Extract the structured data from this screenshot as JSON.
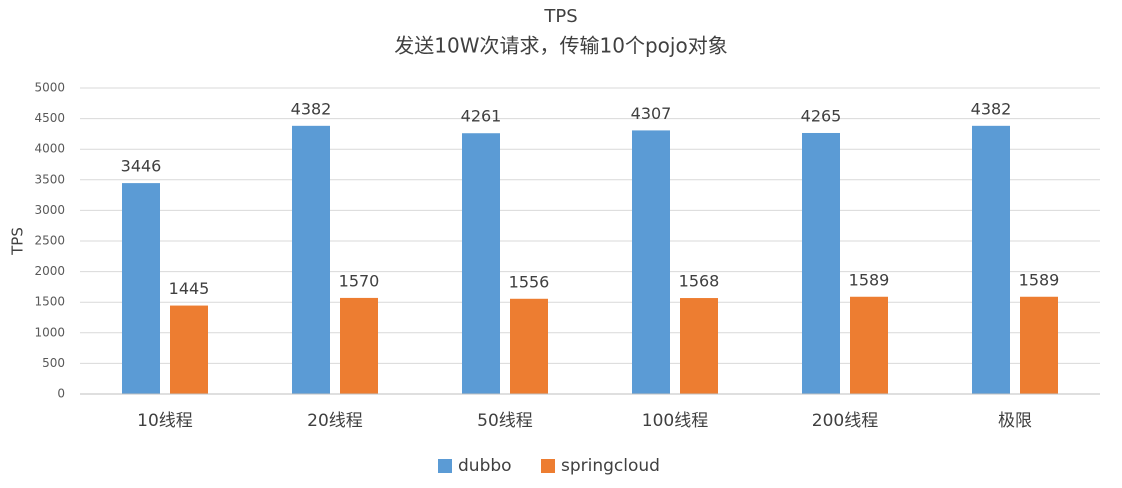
{
  "chart_data": {
    "type": "bar",
    "title": "TPS",
    "subtitle": "发送10W次请求，传输10个pojo对象",
    "y_label": "TPS",
    "categories": [
      "10线程",
      "20线程",
      "50线程",
      "100线程",
      "200线程",
      "极限"
    ],
    "series": [
      {
        "name": "dubbo",
        "color": "#5b9bd5",
        "values": [
          3446,
          4382,
          4261,
          4307,
          4265,
          4382
        ]
      },
      {
        "name": "springcloud",
        "color": "#ed7d31",
        "values": [
          1445,
          1570,
          1556,
          1568,
          1589,
          1589
        ]
      }
    ],
    "ylim": [
      0,
      5000
    ],
    "yticks": [
      0,
      500,
      1000,
      1500,
      2000,
      2500,
      3000,
      3500,
      4000,
      4500,
      5000
    ],
    "grid": true,
    "legend": "bottom"
  }
}
